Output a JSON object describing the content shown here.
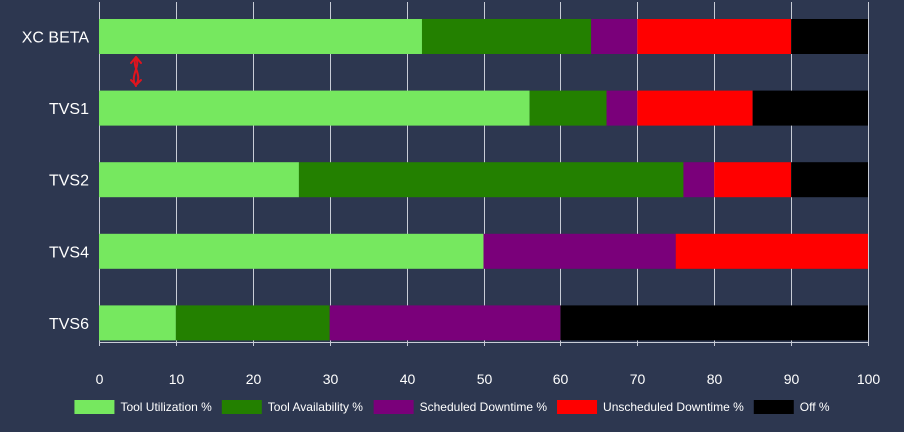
{
  "chart_data": {
    "type": "bar",
    "orientation": "horizontal",
    "stacked": true,
    "categories": [
      "XC BETA",
      "TVS1",
      "TVS2",
      "TVS4",
      "TVS6"
    ],
    "series": [
      {
        "name": "Tool Utilization %",
        "color": "#76e85f",
        "values": [
          42,
          56,
          26,
          50,
          10
        ]
      },
      {
        "name": "Tool Availability %",
        "color": "#238000",
        "values": [
          22,
          10,
          50,
          0,
          20
        ]
      },
      {
        "name": "Scheduled Downtime %",
        "color": "#7a007a",
        "values": [
          6,
          4,
          4,
          25,
          30
        ]
      },
      {
        "name": "Unscheduled Downtime %",
        "color": "#ff0000",
        "values": [
          20,
          15,
          10,
          25,
          0
        ]
      },
      {
        "name": "Off %",
        "color": "#000000",
        "values": [
          10,
          15,
          10,
          0,
          40
        ]
      }
    ],
    "xlim": [
      0,
      100
    ],
    "xticks": [
      "0",
      "10",
      "20",
      "30",
      "40",
      "50",
      "60",
      "70",
      "80",
      "90",
      "100"
    ],
    "grid": true,
    "legend": "bottom",
    "title": "",
    "xlabel": "",
    "ylabel": ""
  }
}
